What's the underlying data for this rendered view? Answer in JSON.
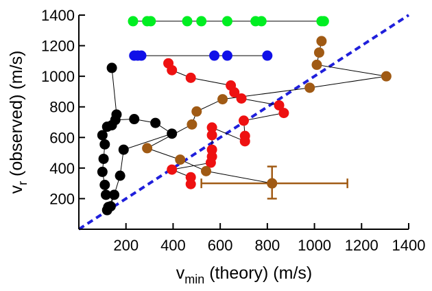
{
  "chart_data": {
    "type": "scatter",
    "xlabel": {
      "main": "v",
      "sub": "min",
      "rest": " (theory) (m/s)"
    },
    "ylabel": {
      "main": "v",
      "sub": "r",
      "rest": " (observed) (m/s)"
    },
    "xlim": [
      0,
      1400
    ],
    "ylim": [
      0,
      1400
    ],
    "xticks": [
      200,
      400,
      600,
      800,
      1000,
      1200,
      1400
    ],
    "xtick_labels": [
      "200",
      "400",
      "600",
      "800",
      "1000",
      "1200",
      "1400"
    ],
    "yticks": [
      200,
      400,
      600,
      800,
      1000,
      1200,
      1400
    ],
    "ytick_labels": [
      "200",
      "400",
      "600",
      "800",
      "1000",
      "1200",
      "1400"
    ],
    "grid": false,
    "reference_line": {
      "type": "y=x",
      "color": "#1f1fdb",
      "style": "dashed"
    },
    "series": [
      {
        "color": "#00ee22",
        "points": [
          [
            230,
            1360
          ],
          [
            290,
            1360
          ],
          [
            305,
            1360
          ],
          [
            460,
            1360
          ],
          [
            520,
            1360
          ],
          [
            630,
            1360
          ],
          [
            750,
            1360
          ],
          [
            775,
            1360
          ],
          [
            1030,
            1360
          ],
          [
            1040,
            1360
          ]
        ]
      },
      {
        "color": "#1010e8",
        "points": [
          [
            235,
            1135
          ],
          [
            250,
            1135
          ],
          [
            265,
            1135
          ],
          [
            575,
            1135
          ],
          [
            630,
            1135
          ],
          [
            800,
            1135
          ]
        ]
      },
      {
        "color": "#000000",
        "points": [
          [
            140,
            1055
          ],
          [
            160,
            750
          ],
          [
            155,
            715
          ],
          [
            235,
            720
          ],
          [
            325,
            695
          ],
          [
            395,
            625
          ],
          [
            190,
            520
          ],
          [
            175,
            350
          ],
          [
            135,
            150
          ],
          [
            120,
            125
          ],
          [
            125,
            145
          ],
          [
            150,
            225
          ],
          [
            115,
            225
          ],
          [
            110,
            290
          ],
          [
            100,
            375
          ],
          [
            105,
            460
          ],
          [
            110,
            555
          ],
          [
            100,
            615
          ],
          [
            120,
            670
          ],
          [
            140,
            680
          ]
        ]
      },
      {
        "color": "#ee1111",
        "points": [
          [
            380,
            1085
          ],
          [
            395,
            1040
          ],
          [
            475,
            990
          ],
          [
            645,
            940
          ],
          [
            660,
            895
          ],
          [
            690,
            855
          ],
          [
            850,
            810
          ],
          [
            870,
            760
          ],
          [
            700,
            710
          ],
          [
            705,
            610
          ],
          [
            705,
            575
          ],
          [
            565,
            665
          ],
          [
            565,
            615
          ],
          [
            565,
            520
          ],
          [
            565,
            475
          ],
          [
            560,
            435
          ],
          [
            395,
            390
          ],
          [
            475,
            340
          ],
          [
            475,
            295
          ]
        ]
      },
      {
        "color": "#a05a14",
        "points": [
          [
            1030,
            1230
          ],
          [
            1020,
            1155
          ],
          [
            1010,
            1075
          ],
          [
            1305,
            1000
          ],
          [
            980,
            925
          ],
          [
            610,
            850
          ],
          [
            500,
            770
          ],
          [
            480,
            685
          ],
          [
            290,
            530
          ],
          [
            430,
            455
          ],
          [
            540,
            380
          ],
          [
            820,
            300
          ]
        ]
      }
    ],
    "error_bar": {
      "color": "#a05a14",
      "point": [
        820,
        300
      ],
      "x_range": [
        520,
        1140
      ],
      "y_range": [
        200,
        410
      ]
    }
  }
}
